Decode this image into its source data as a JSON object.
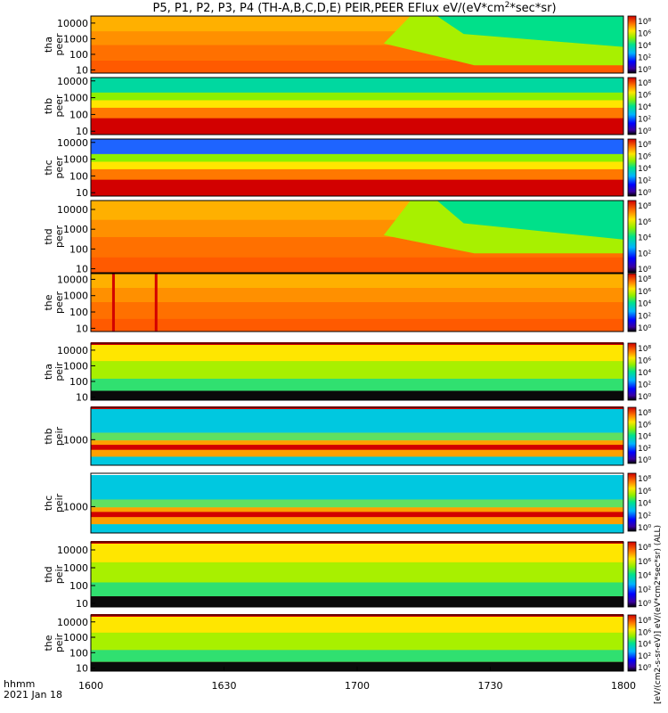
{
  "chart_data": {
    "type": "heatmap",
    "title": "P5, P1, P2, P3, P4 (TH-A,B,C,D,E) PEIR,PEER EFlux eV/(eV*cm",
    "title_sup": "2",
    "title_tail": "*sec*sr)",
    "xaxis": {
      "ticks": [
        "1600",
        "1630",
        "1700",
        "1730",
        "1800"
      ],
      "label_line1": "hhmm",
      "label_line2": "2021 Jan 18"
    },
    "colorbar": {
      "ticks": [
        "10⁸",
        "10⁶",
        "10⁴",
        "10²",
        "10⁰"
      ],
      "ticks_short": [
        "10⁶",
        "10⁴",
        "10²"
      ],
      "unit_label": "[eV/(cm2-s-sr-eV)] eV/(eV*cm2*sec*sr) (ALL)"
    },
    "panels": [
      {
        "name": "tha_peer",
        "label": [
          "tha",
          "peer"
        ],
        "yticks": [
          "10000",
          "1000",
          "100",
          "10"
        ],
        "ylog": [
          0.8,
          4.45
        ]
      },
      {
        "name": "thb_peer",
        "label": [
          "thb",
          "peer"
        ],
        "yticks": [
          "10000",
          "1000",
          "100",
          "10"
        ],
        "ylog": [
          0.8,
          4.2
        ]
      },
      {
        "name": "thc_peer",
        "label": [
          "thc",
          "peer"
        ],
        "yticks": [
          "10000",
          "1000",
          "100",
          "10"
        ],
        "ylog": [
          0.8,
          4.2
        ]
      },
      {
        "name": "thd_peer",
        "label": [
          "thd",
          "peer"
        ],
        "yticks": [
          "10000",
          "1000",
          "100",
          "10"
        ],
        "ylog": [
          0.8,
          4.45
        ]
      },
      {
        "name": "the_peer",
        "label": [
          "the",
          "peer"
        ],
        "yticks": [
          "10000",
          "1000",
          "100",
          "10"
        ],
        "ylog": [
          0.8,
          4.35
        ]
      },
      {
        "name": "tha_peir",
        "label": [
          "tha",
          "peir"
        ],
        "yticks": [
          "10000",
          "1000",
          "100",
          "10"
        ],
        "ylog": [
          0.8,
          4.45
        ]
      },
      {
        "name": "thb_peir",
        "label": [
          "thb",
          "peir"
        ],
        "yticks": [
          "1000"
        ],
        "ylog": [
          1.5,
          4.9
        ]
      },
      {
        "name": "thc_peir",
        "label": [
          "thc",
          "peir"
        ],
        "yticks": [
          "1000"
        ],
        "ylog": [
          1.5,
          4.9
        ]
      },
      {
        "name": "thd_peir",
        "label": [
          "thd",
          "peir"
        ],
        "yticks": [
          "10000",
          "1000",
          "100",
          "10"
        ],
        "ylog": [
          0.8,
          4.45
        ]
      },
      {
        "name": "the_peir",
        "label": [
          "the",
          "peir"
        ],
        "yticks": [
          "10000",
          "1000",
          "100",
          "10"
        ],
        "ylog": [
          0.8,
          4.45
        ]
      }
    ]
  }
}
